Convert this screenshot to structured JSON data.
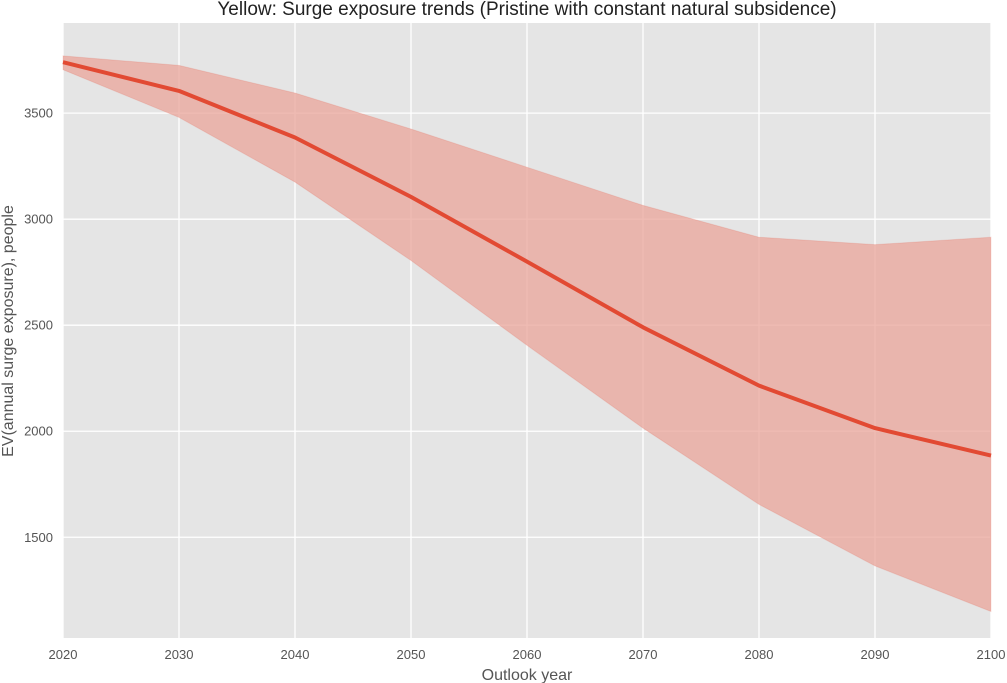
{
  "chart_data": {
    "type": "area",
    "title": "Yellow: Surge exposure trends (Pristine with constant natural subsidence)",
    "xlabel": "Outlook year",
    "ylabel": "EV(annual surge exposure), people",
    "x": [
      2020,
      2030,
      2040,
      2050,
      2060,
      2070,
      2080,
      2090,
      2100
    ],
    "series": [
      {
        "values": [
          3740,
          3605,
          3385,
          3105,
          2800,
          2490,
          2215,
          2015,
          1885
        ],
        "lower": [
          3705,
          3480,
          3175,
          2805,
          2405,
          2015,
          1655,
          1365,
          1150
        ],
        "upper": [
          3770,
          3725,
          3595,
          3425,
          3245,
          3065,
          2915,
          2880,
          2915
        ],
        "color": "#e24a33",
        "band_color": "#e9a49a"
      }
    ],
    "xlim": [
      2020,
      2100
    ],
    "ylim": [
      1025,
      3925
    ],
    "xticks": [
      "2020",
      "2030",
      "2040",
      "2050",
      "2060",
      "2070",
      "2080",
      "2090",
      "2100"
    ],
    "yticks": [
      "1500",
      "2000",
      "2500",
      "3000",
      "3500"
    ],
    "grid": true,
    "background": "#e5e5e5",
    "grid_color": "#ffffff"
  }
}
